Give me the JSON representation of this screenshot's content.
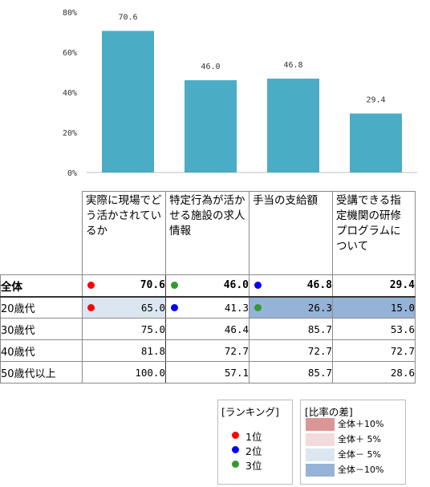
{
  "chart_data": {
    "type": "bar",
    "categories": [
      "実際に現場でどう活かされているか",
      "特定行為が活かせる施設の求人情報",
      "手当の支給額",
      "受講できる指定機関の研修プログラムについて"
    ],
    "values": [
      70.6,
      46.0,
      46.8,
      29.4
    ],
    "value_labels": [
      "70.6",
      "46.0",
      "46.8",
      "29.4"
    ],
    "ylim": [
      0,
      80
    ],
    "yticks": [
      "0%",
      "20%",
      "40%",
      "60%",
      "80%"
    ],
    "bar_color": "#4bacc6",
    "grid": false
  },
  "table": {
    "headers": [
      "実際に現場でどう活かされているか",
      "特定行為が活かせる施設の求人情報",
      "手当の支給額",
      "受講できる指定機関の研修プログラムについて"
    ],
    "rows": [
      {
        "label": "全体",
        "cells": [
          "70.6",
          "46.0",
          "46.8",
          "29.4"
        ]
      },
      {
        "label": "20歳代",
        "cells": [
          "65.0",
          "41.3",
          "26.3",
          "15.0"
        ]
      },
      {
        "label": "30歳代",
        "cells": [
          "75.0",
          "46.4",
          "85.7",
          "53.6"
        ]
      },
      {
        "label": "40歳代",
        "cells": [
          "81.8",
          "72.7",
          "72.7",
          "72.7"
        ]
      },
      {
        "label": "50歳代以上",
        "cells": [
          "100.0",
          "57.1",
          "85.7",
          "28.6"
        ]
      }
    ],
    "total_rank_dots": [
      "#ff0000",
      "#339933",
      "#0000ff",
      null
    ],
    "row20_rank_dots": [
      "#ff0000",
      "#0000ff",
      "#339933",
      null
    ],
    "row20_fill": [
      "#dce6f1",
      null,
      "#95b3d7",
      "#95b3d7"
    ]
  },
  "legend_rank": {
    "title": "[ランキング]",
    "items": [
      {
        "label": "1位",
        "color": "#ff0000"
      },
      {
        "label": "2位",
        "color": "#0000ff"
      },
      {
        "label": "3位",
        "color": "#339933"
      }
    ]
  },
  "legend_diff": {
    "title": "[比率の差]",
    "items": [
      {
        "label": "全体＋10%",
        "color": "#da9694"
      },
      {
        "label": "全体＋ 5%",
        "color": "#f2dcdb"
      },
      {
        "label": "全体－ 5%",
        "color": "#dce6f1"
      },
      {
        "label": "全体－10%",
        "color": "#95b3d7"
      }
    ]
  }
}
